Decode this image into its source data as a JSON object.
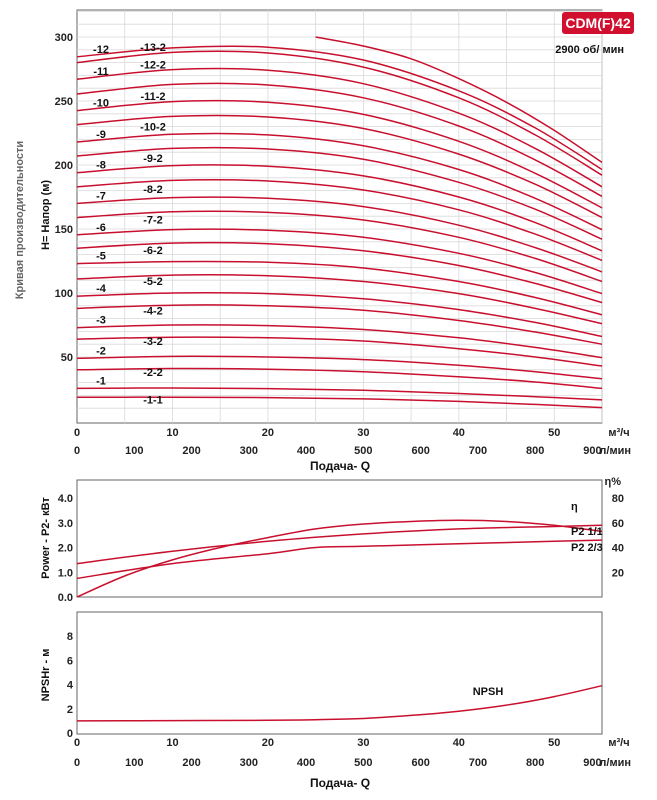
{
  "header": {
    "model_badge": "CDM(F)42",
    "speed": "2900 об/ мин",
    "side_title": "Кривая производительности",
    "badge_color": "#d0102e"
  },
  "colors": {
    "curve": "#c8102e",
    "grid": "#d9d9d9",
    "frame": "#666666"
  },
  "chart_data": [
    {
      "type": "line",
      "id": "head",
      "ylabel": "H= Напор (м)",
      "xlabel": "Подача- Q",
      "x_unit_top": "м³/ч",
      "x_unit_bottom": "л/мин",
      "xlim": [
        0,
        55
      ],
      "ylim": [
        0,
        300
      ],
      "x_ticks": [
        0,
        10,
        20,
        30,
        40,
        50
      ],
      "x_ticks_lpm": [
        0,
        100,
        200,
        300,
        400,
        500,
        600,
        700,
        800,
        900
      ],
      "y_ticks": [
        50,
        100,
        150,
        200,
        250,
        300
      ],
      "grid": true,
      "series": [
        {
          "name": "-1-1",
          "values": [
            [
              0,
              18.5
            ],
            [
              10,
              18.6
            ],
            [
              20,
              18.3
            ],
            [
              30,
              17.3
            ],
            [
              40,
              15.3
            ],
            [
              48,
              13.0
            ],
            [
              55,
              10.5
            ]
          ]
        },
        {
          "name": "-1",
          "values": [
            [
              0,
              25.5
            ],
            [
              10,
              25.8
            ],
            [
              20,
              25.3
            ],
            [
              30,
              24.0
            ],
            [
              40,
              21.5
            ],
            [
              48,
              19.0
            ],
            [
              55,
              16.5
            ]
          ]
        },
        {
          "name": "-2-2",
          "values": [
            [
              0,
              40
            ],
            [
              10,
              41
            ],
            [
              20,
              40.5
            ],
            [
              30,
              38.5
            ],
            [
              40,
              34.5
            ],
            [
              48,
              30.5
            ],
            [
              55,
              25.5
            ]
          ]
        },
        {
          "name": "-2",
          "values": [
            [
              0,
              49
            ],
            [
              10,
              50.5
            ],
            [
              20,
              50
            ],
            [
              30,
              48
            ],
            [
              40,
              43.5
            ],
            [
              48,
              38.5
            ],
            [
              55,
              33
            ]
          ]
        },
        {
          "name": "-3-2",
          "values": [
            [
              0,
              64
            ],
            [
              10,
              65.5
            ],
            [
              20,
              65
            ],
            [
              30,
              62.5
            ],
            [
              40,
              56.5
            ],
            [
              48,
              50
            ],
            [
              55,
              43
            ]
          ]
        },
        {
          "name": "-3",
          "values": [
            [
              0,
              73
            ],
            [
              10,
              75
            ],
            [
              20,
              74.5
            ],
            [
              30,
              71.5
            ],
            [
              40,
              65
            ],
            [
              48,
              57.5
            ],
            [
              55,
              49.5
            ]
          ]
        },
        {
          "name": "-4-2",
          "values": [
            [
              0,
              88
            ],
            [
              10,
              90.5
            ],
            [
              20,
              90
            ],
            [
              30,
              86.5
            ],
            [
              40,
              78.5
            ],
            [
              48,
              69.5
            ],
            [
              55,
              60
            ]
          ]
        },
        {
          "name": "-4",
          "values": [
            [
              0,
              97.5
            ],
            [
              10,
              100
            ],
            [
              20,
              99.5
            ],
            [
              30,
              95.5
            ],
            [
              40,
              87
            ],
            [
              48,
              77
            ],
            [
              55,
              66
            ]
          ]
        },
        {
          "name": "-5-2",
          "values": [
            [
              0,
              111
            ],
            [
              10,
              114
            ],
            [
              20,
              113.5
            ],
            [
              30,
              109
            ],
            [
              40,
              99.5
            ],
            [
              48,
              88
            ],
            [
              55,
              76
            ]
          ]
        },
        {
          "name": "-5",
          "values": [
            [
              0,
              123
            ],
            [
              10,
              124.5
            ],
            [
              20,
              124
            ],
            [
              30,
              119.5
            ],
            [
              40,
              109
            ],
            [
              48,
              96.5
            ],
            [
              55,
              83
            ]
          ]
        },
        {
          "name": "-6-2",
          "values": [
            [
              0,
              135
            ],
            [
              10,
              139
            ],
            [
              20,
              138.5
            ],
            [
              30,
              133
            ],
            [
              40,
              121.5
            ],
            [
              48,
              107.5
            ],
            [
              55,
              92.5
            ]
          ]
        },
        {
          "name": "-6",
          "values": [
            [
              0,
              145.5
            ],
            [
              10,
              149.5
            ],
            [
              20,
              149
            ],
            [
              30,
              143.5
            ],
            [
              40,
              131
            ],
            [
              48,
              116
            ],
            [
              55,
              99.5
            ]
          ]
        },
        {
          "name": "-7-2",
          "values": [
            [
              0,
              159
            ],
            [
              10,
              163.5
            ],
            [
              20,
              163
            ],
            [
              30,
              157
            ],
            [
              40,
              143.5
            ],
            [
              48,
              127
            ],
            [
              55,
              109
            ]
          ]
        },
        {
          "name": "-7",
          "values": [
            [
              0,
              170
            ],
            [
              10,
              174.5
            ],
            [
              20,
              174
            ],
            [
              30,
              167.5
            ],
            [
              40,
              153
            ],
            [
              48,
              135.5
            ],
            [
              55,
              116.5
            ]
          ]
        },
        {
          "name": "-8-2",
          "values": [
            [
              0,
              183
            ],
            [
              10,
              188
            ],
            [
              20,
              187.5
            ],
            [
              30,
              180.5
            ],
            [
              40,
              165
            ],
            [
              48,
              146
            ],
            [
              55,
              125.5
            ]
          ]
        },
        {
          "name": "-8",
          "values": [
            [
              0,
              194
            ],
            [
              10,
              199.5
            ],
            [
              20,
              199
            ],
            [
              30,
              191.5
            ],
            [
              40,
              175
            ],
            [
              48,
              155
            ],
            [
              55,
              133
            ]
          ]
        },
        {
          "name": "-9-2",
          "values": [
            [
              0,
              207
            ],
            [
              10,
              213
            ],
            [
              20,
              212.5
            ],
            [
              30,
              204.5
            ],
            [
              40,
              186.5
            ],
            [
              48,
              165.5
            ],
            [
              55,
              142
            ]
          ]
        },
        {
          "name": "-9",
          "values": [
            [
              0,
              218
            ],
            [
              10,
              224
            ],
            [
              20,
              223.5
            ],
            [
              30,
              215
            ],
            [
              40,
              196.5
            ],
            [
              48,
              174
            ],
            [
              55,
              149.5
            ]
          ]
        },
        {
          "name": "-10-2",
          "values": [
            [
              0,
              231.5
            ],
            [
              10,
              238
            ],
            [
              20,
              237.5
            ],
            [
              30,
              228.5
            ],
            [
              40,
              208.5
            ],
            [
              48,
              185
            ],
            [
              55,
              159
            ]
          ]
        },
        {
          "name": "-10",
          "values": [
            [
              0,
              242.5
            ],
            [
              10,
              249.5
            ],
            [
              20,
              249
            ],
            [
              30,
              239.5
            ],
            [
              40,
              218.5
            ],
            [
              48,
              193.5
            ],
            [
              55,
              166.5
            ]
          ]
        },
        {
          "name": "-11-2",
          "values": [
            [
              0,
              255.5
            ],
            [
              10,
              263
            ],
            [
              20,
              262.5
            ],
            [
              30,
              252.5
            ],
            [
              40,
              230.5
            ],
            [
              48,
              204
            ],
            [
              55,
              175.5
            ]
          ]
        },
        {
          "name": "-11",
          "values": [
            [
              0,
              267
            ],
            [
              10,
              274.5
            ],
            [
              20,
              274
            ],
            [
              30,
              263.5
            ],
            [
              40,
              240.5
            ],
            [
              48,
              213
            ],
            [
              55,
              183
            ]
          ]
        },
        {
          "name": "-12-2",
          "values": [
            [
              0,
              280
            ],
            [
              10,
              288
            ],
            [
              20,
              287.5
            ],
            [
              30,
              276.5
            ],
            [
              40,
              252.5
            ],
            [
              48,
              223.5
            ],
            [
              55,
              192
            ]
          ]
        },
        {
          "name": "-12",
          "values": [
            [
              0,
              284.5
            ],
            [
              10,
              291.5
            ],
            [
              20,
              292
            ],
            [
              30,
              282
            ],
            [
              40,
              258
            ],
            [
              48,
              229
            ],
            [
              55,
              196.5
            ]
          ]
        },
        {
          "name": "-13-2",
          "values": [
            [
              25,
              300
            ],
            [
              30,
              293
            ],
            [
              35,
              283
            ],
            [
              40,
              267.5
            ],
            [
              45,
              249
            ],
            [
              50,
              227
            ],
            [
              55,
              202
            ]
          ]
        }
      ]
    },
    {
      "type": "line",
      "id": "power",
      "ylabel": "Power - P2- кВт",
      "y2label": "η%",
      "xlim": [
        0,
        55
      ],
      "ylim": [
        0,
        4.0
      ],
      "y_ticks": [
        0,
        1.0,
        2.0,
        3.0,
        4.0
      ],
      "y2lim": [
        0,
        80
      ],
      "y2_ticks": [
        20,
        40,
        60,
        80
      ],
      "grid": false,
      "series": [
        {
          "name": "η",
          "axis": "right",
          "values": [
            [
              0,
              0
            ],
            [
              5,
              17
            ],
            [
              10,
              30
            ],
            [
              15,
              40
            ],
            [
              20,
              48
            ],
            [
              25,
              55
            ],
            [
              30,
              59
            ],
            [
              35,
              61
            ],
            [
              40,
              62
            ],
            [
              45,
              61
            ],
            [
              50,
              58
            ],
            [
              55,
              53
            ]
          ]
        },
        {
          "name": "P2 1/1",
          "axis": "left",
          "values": [
            [
              0,
              1.35
            ],
            [
              10,
              1.85
            ],
            [
              20,
              2.25
            ],
            [
              30,
              2.55
            ],
            [
              40,
              2.75
            ],
            [
              50,
              2.85
            ],
            [
              55,
              2.9
            ]
          ]
        },
        {
          "name": "P2 2/3",
          "axis": "left",
          "values": [
            [
              0,
              0.75
            ],
            [
              10,
              1.35
            ],
            [
              20,
              1.75
            ],
            [
              25,
              2.0
            ],
            [
              30,
              2.05
            ],
            [
              40,
              2.15
            ],
            [
              50,
              2.25
            ],
            [
              55,
              2.3
            ]
          ]
        }
      ]
    },
    {
      "type": "line",
      "id": "npsh",
      "ylabel": "NPSHr - м",
      "xlabel": "Подача- Q",
      "x_unit_top": "м³/ч",
      "x_unit_bottom": "л/мин",
      "xlim": [
        0,
        55
      ],
      "ylim": [
        0,
        8
      ],
      "y_ticks": [
        0,
        2,
        4,
        6,
        8
      ],
      "x_ticks": [
        0,
        10,
        20,
        30,
        40,
        50
      ],
      "x_ticks_lpm": [
        0,
        100,
        200,
        300,
        400,
        500,
        600,
        700,
        800,
        900
      ],
      "grid": false,
      "series": [
        {
          "name": "NPSH",
          "values": [
            [
              0,
              1.0
            ],
            [
              10,
              1.02
            ],
            [
              20,
              1.05
            ],
            [
              25,
              1.1
            ],
            [
              30,
              1.2
            ],
            [
              35,
              1.45
            ],
            [
              40,
              1.8
            ],
            [
              45,
              2.3
            ],
            [
              50,
              3.0
            ],
            [
              55,
              3.9
            ]
          ]
        }
      ]
    }
  ]
}
